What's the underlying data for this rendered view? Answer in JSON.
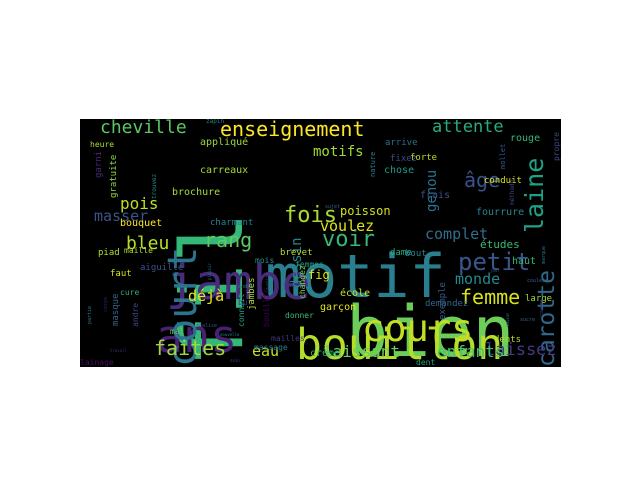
{
  "wordcloud": {
    "background": "#000000",
    "words": [
      {
        "text": "motif",
        "color": "#2a7f8e"
      },
      {
        "text": "fil",
        "color": "#35b778"
      },
      {
        "text": "bien",
        "color": "#6cce59"
      },
      {
        "text": "jambe",
        "color": "#472d7b"
      },
      {
        "text": "bouillon",
        "color": "#b5de2b"
      },
      {
        "text": "cours",
        "color": "#c2df23"
      },
      {
        "text": "ans",
        "color": "#482173"
      },
      {
        "text": "court",
        "color": "#2c738e"
      },
      {
        "text": "enseignement",
        "color": "#fde725"
      },
      {
        "text": "cheville",
        "color": "#5ac864"
      },
      {
        "text": "attente",
        "color": "#27ad81"
      },
      {
        "text": "laine",
        "color": "#1fa187"
      },
      {
        "text": "âge",
        "color": "#3b528b"
      },
      {
        "text": "carotte",
        "color": "#31688e"
      },
      {
        "text": "petit",
        "color": "#39568c"
      },
      {
        "text": "femme",
        "color": "#d8e219"
      },
      {
        "text": "fois",
        "color": "#a8db34"
      },
      {
        "text": "rang",
        "color": "#5ec962"
      },
      {
        "text": "voir",
        "color": "#35b779"
      },
      {
        "text": "faites",
        "color": "#9fda3a"
      },
      {
        "text": "bleu",
        "color": "#b8de29"
      },
      {
        "text": "motifs",
        "color": "#a0da39"
      },
      {
        "text": "masser",
        "color": "#3b528b"
      },
      {
        "text": "genou",
        "color": "#2c728e"
      },
      {
        "text": "laissez",
        "color": "#443983"
      },
      {
        "text": "laissant",
        "color": "#6ccd5a"
      },
      {
        "text": "enfants",
        "color": "#4ac16d"
      },
      {
        "text": "complet",
        "color": "#2e6e8e"
      },
      {
        "text": "monde",
        "color": "#23898e"
      },
      {
        "text": "pois",
        "color": "#bddf26"
      },
      {
        "text": "déjà",
        "color": "#e5e419"
      },
      {
        "text": "eau",
        "color": "#c8e020"
      },
      {
        "text": "dessin",
        "color": "#25848e"
      },
      {
        "text": "voulez",
        "color": "#dde318"
      },
      {
        "text": "poisson",
        "color": "#d0e11c"
      },
      {
        "text": "études",
        "color": "#3aba76"
      },
      {
        "text": "rouge",
        "color": "#35b779"
      },
      {
        "text": "haut",
        "color": "#32b67a"
      },
      {
        "text": "crème",
        "color": "#2ab07f"
      },
      {
        "text": "dents",
        "color": "#b5de2b"
      },
      {
        "text": "brochure",
        "color": "#a5db36"
      },
      {
        "text": "bouquet",
        "color": "#fde725"
      },
      {
        "text": "charmant",
        "color": "#25838e"
      },
      {
        "text": "brevet",
        "color": "#b2dd2d"
      },
      {
        "text": "femmes",
        "color": "#1f9e89"
      },
      {
        "text": "appliqué",
        "color": "#9dd93b"
      },
      {
        "text": "carreaux",
        "color": "#a2da37"
      },
      {
        "text": "gratuite",
        "color": "#89d548"
      },
      {
        "text": "garni",
        "color": "#482677"
      },
      {
        "text": "heure",
        "color": "#aadc32"
      },
      {
        "text": "faut",
        "color": "#d2e21b"
      },
      {
        "text": "cure",
        "color": "#29af7f"
      },
      {
        "text": "aiguille",
        "color": "#3b528b"
      },
      {
        "text": "piad",
        "color": "#b2dd2d"
      },
      {
        "text": "maille",
        "color": "#a8db34"
      },
      {
        "text": "mal",
        "color": "#5ec962"
      },
      {
        "text": "but",
        "color": "#46337f"
      },
      {
        "text": "mois",
        "color": "#21918c"
      },
      {
        "text": "connaît",
        "color": "#1fa188"
      },
      {
        "text": "jambes",
        "color": "#addc30"
      },
      {
        "text": "andre",
        "color": "#3f4889"
      },
      {
        "text": "dame",
        "color": "#29af7f"
      },
      {
        "text": "bout",
        "color": "#26828e"
      },
      {
        "text": "école",
        "color": "#c5e021"
      },
      {
        "text": "garçon",
        "color": "#e2e418"
      },
      {
        "text": "bouillir",
        "color": "#440154"
      },
      {
        "text": "fig",
        "color": "#dde318"
      },
      {
        "text": "changez",
        "color": "#7fd34e"
      },
      {
        "text": "donner",
        "color": "#3dbc74"
      },
      {
        "text": "massage",
        "color": "#287d8e"
      },
      {
        "text": "mailles",
        "color": "#46337f"
      },
      {
        "text": "lainage",
        "color": "#471164"
      },
      {
        "text": "dent",
        "color": "#21a585"
      },
      {
        "text": "demandez",
        "color": "#31688e"
      },
      {
        "text": "exemple",
        "color": "#365c8d"
      },
      {
        "text": "fixez",
        "color": "#3e4a89"
      },
      {
        "text": "arrive",
        "color": "#2c728e"
      },
      {
        "text": "forte",
        "color": "#bade28"
      },
      {
        "text": "chose",
        "color": "#1e9c89"
      },
      {
        "text": "nature",
        "color": "#277f8e"
      },
      {
        "text": "frais",
        "color": "#3b528b"
      },
      {
        "text": "conduit",
        "color": "#d8e219"
      },
      {
        "text": "fourrure",
        "color": "#24878e"
      },
      {
        "text": "large",
        "color": "#a0da39"
      },
      {
        "text": "propre",
        "color": "#3f4788"
      },
      {
        "text": "mollet",
        "color": "#38588c"
      },
      {
        "text": "zapin",
        "color": "#26828e"
      },
      {
        "text": "tendre",
        "color": "#2a788e"
      },
      {
        "text": "méthode",
        "color": "#404688"
      },
      {
        "text": "coudre",
        "color": "#433e85"
      },
      {
        "text": "sucre",
        "color": "#31678e"
      },
      {
        "text": "marque",
        "color": "#2d718e"
      },
      {
        "text": "couleur",
        "color": "#34618d"
      },
      {
        "text": "travail",
        "color": "#472c7a"
      },
      {
        "text": "réalise",
        "color": "#3e4c8a"
      },
      {
        "text": "nouvelle",
        "color": "#24868e"
      },
      {
        "text": "partie",
        "color": "#2c738e"
      },
      {
        "text": "corps",
        "color": "#481b6d"
      },
      {
        "text": "plaisir",
        "color": "#2b758e"
      },
      {
        "text": "qualité",
        "color": "#3b528b"
      },
      {
        "text": "masque",
        "color": "#32648e"
      },
      {
        "text": "trouvez",
        "color": "#21918c"
      },
      {
        "text": "sujet",
        "color": "#33638d"
      },
      {
        "text": "jour",
        "color": "#39568c"
      },
      {
        "text": "saison",
        "color": "#287d8e"
      },
      {
        "text": "soin",
        "color": "#3c508b"
      }
    ]
  }
}
